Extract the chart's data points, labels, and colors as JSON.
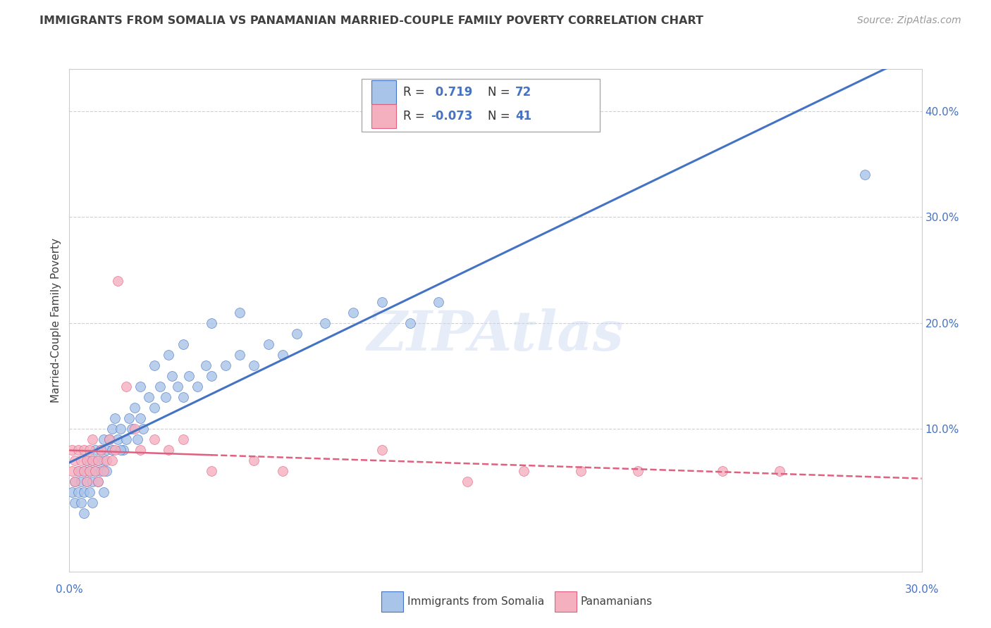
{
  "title": "IMMIGRANTS FROM SOMALIA VS PANAMANIAN MARRIED-COUPLE FAMILY POVERTY CORRELATION CHART",
  "source": "Source: ZipAtlas.com",
  "ylabel": "Married-Couple Family Poverty",
  "watermark": "ZIPAtlas",
  "legend1_label": "Immigrants from Somalia",
  "legend2_label": "Panamanians",
  "r1": 0.719,
  "n1": 72,
  "r2": -0.073,
  "n2": 41,
  "xlim": [
    0.0,
    0.3
  ],
  "ylim": [
    -0.035,
    0.44
  ],
  "ytick_vals": [
    0.0,
    0.1,
    0.2,
    0.3,
    0.4
  ],
  "ytick_labels": [
    "",
    "10.0%",
    "20.0%",
    "30.0%",
    "40.0%"
  ],
  "xtick_labels": [
    "0.0%",
    "30.0%"
  ],
  "color_blue": "#A8C4E8",
  "color_pink": "#F5B0C0",
  "line_blue": "#4472C4",
  "line_pink": "#E06080",
  "background_color": "#FFFFFF",
  "grid_color": "#D0D0D0",
  "title_color": "#404040",
  "source_color": "#999999",
  "somalia_points_x": [
    0.001,
    0.002,
    0.002,
    0.003,
    0.003,
    0.004,
    0.004,
    0.005,
    0.005,
    0.006,
    0.006,
    0.007,
    0.007,
    0.008,
    0.008,
    0.009,
    0.009,
    0.01,
    0.01,
    0.011,
    0.011,
    0.012,
    0.012,
    0.013,
    0.013,
    0.014,
    0.015,
    0.015,
    0.016,
    0.017,
    0.018,
    0.019,
    0.02,
    0.021,
    0.022,
    0.023,
    0.024,
    0.025,
    0.026,
    0.028,
    0.03,
    0.032,
    0.034,
    0.036,
    0.038,
    0.04,
    0.042,
    0.045,
    0.048,
    0.05,
    0.055,
    0.06,
    0.065,
    0.07,
    0.075,
    0.08,
    0.09,
    0.1,
    0.11,
    0.12,
    0.005,
    0.008,
    0.012,
    0.018,
    0.025,
    0.03,
    0.035,
    0.04,
    0.05,
    0.06,
    0.13,
    0.28
  ],
  "somalia_points_y": [
    0.04,
    0.05,
    0.03,
    0.06,
    0.04,
    0.05,
    0.03,
    0.06,
    0.04,
    0.05,
    0.07,
    0.06,
    0.04,
    0.07,
    0.05,
    0.08,
    0.06,
    0.07,
    0.05,
    0.08,
    0.06,
    0.09,
    0.07,
    0.08,
    0.06,
    0.09,
    0.1,
    0.08,
    0.11,
    0.09,
    0.1,
    0.08,
    0.09,
    0.11,
    0.1,
    0.12,
    0.09,
    0.11,
    0.1,
    0.13,
    0.12,
    0.14,
    0.13,
    0.15,
    0.14,
    0.13,
    0.15,
    0.14,
    0.16,
    0.15,
    0.16,
    0.17,
    0.16,
    0.18,
    0.17,
    0.19,
    0.2,
    0.21,
    0.22,
    0.2,
    0.02,
    0.03,
    0.04,
    0.08,
    0.14,
    0.16,
    0.17,
    0.18,
    0.2,
    0.21,
    0.22,
    0.34
  ],
  "panama_points_x": [
    0.001,
    0.001,
    0.002,
    0.002,
    0.003,
    0.003,
    0.004,
    0.005,
    0.005,
    0.006,
    0.006,
    0.007,
    0.007,
    0.008,
    0.008,
    0.009,
    0.01,
    0.01,
    0.011,
    0.012,
    0.013,
    0.014,
    0.015,
    0.016,
    0.017,
    0.02,
    0.023,
    0.025,
    0.03,
    0.035,
    0.04,
    0.05,
    0.065,
    0.075,
    0.11,
    0.14,
    0.16,
    0.18,
    0.2,
    0.23,
    0.25
  ],
  "panama_points_y": [
    0.06,
    0.08,
    0.07,
    0.05,
    0.08,
    0.06,
    0.07,
    0.08,
    0.06,
    0.07,
    0.05,
    0.08,
    0.06,
    0.09,
    0.07,
    0.06,
    0.07,
    0.05,
    0.08,
    0.06,
    0.07,
    0.09,
    0.07,
    0.08,
    0.24,
    0.14,
    0.1,
    0.08,
    0.09,
    0.08,
    0.09,
    0.06,
    0.07,
    0.06,
    0.08,
    0.05,
    0.06,
    0.06,
    0.06,
    0.06,
    0.06
  ]
}
